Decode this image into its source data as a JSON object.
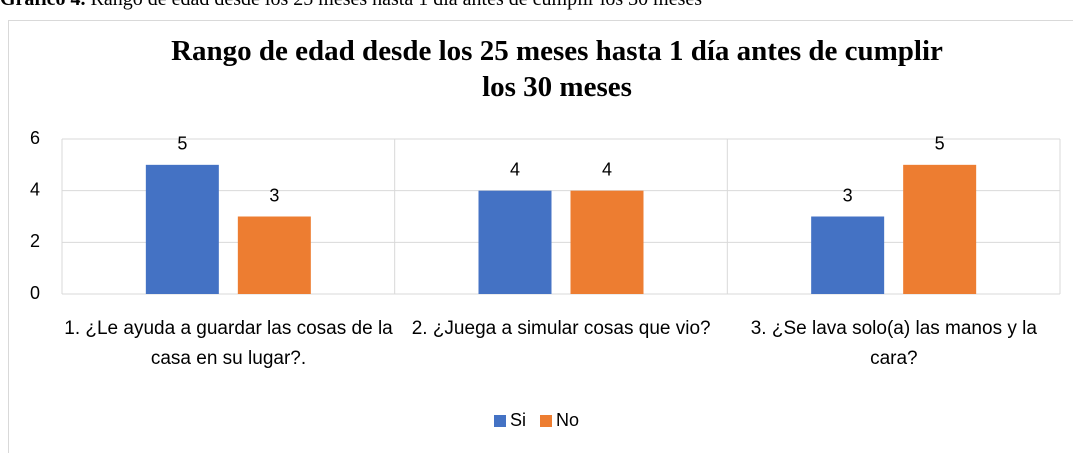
{
  "caption_label": "Gráfico 4.",
  "caption": "Rango de edad desde los 25 meses hasta 1 día antes de cumplir los 30 meses",
  "chart_data": {
    "type": "bar",
    "title": "Rango de edad desde los 25 meses hasta 1 día antes de cumplir los 30 meses",
    "categories": [
      "1. ¿Le ayuda a guardar las cosas de la casa en su lugar?.",
      "2. ¿Juega a simular cosas que vio?",
      "3. ¿Se lava solo(a) las manos y la cara?"
    ],
    "series": [
      {
        "name": "Si",
        "color": "#4472c4",
        "values": [
          5,
          4,
          3
        ]
      },
      {
        "name": "No",
        "color": "#ed7d31",
        "values": [
          3,
          4,
          5
        ]
      }
    ],
    "ylim": [
      0,
      6
    ],
    "yticks": [
      0,
      2,
      4,
      6
    ],
    "grid": true,
    "legend": "bottom"
  }
}
